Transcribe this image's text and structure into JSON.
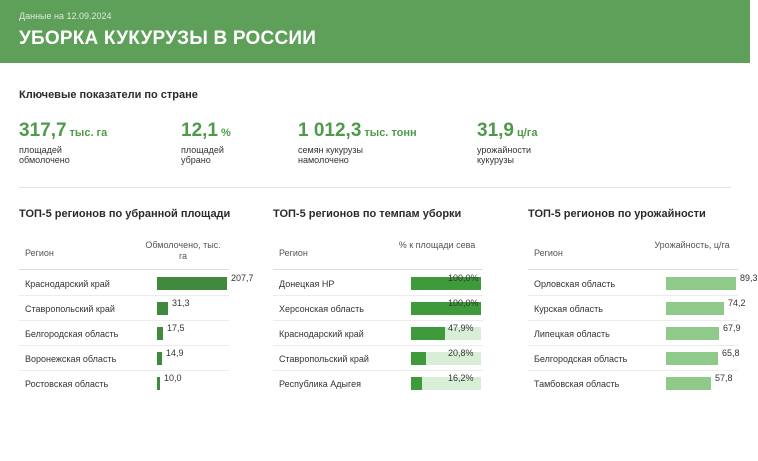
{
  "header": {
    "date": "Данные на 12.09.2024",
    "title": "УБОРКА КУКУРУЗЫ В РОССИИ",
    "background": "#5ea05a"
  },
  "kpi_section": {
    "title": "Ключевые показатели по стране",
    "items": [
      {
        "value": "317,7",
        "unit": "тыс. га",
        "desc_line1": "площадей",
        "desc_line2": "обмолочено"
      },
      {
        "value": "12,1",
        "unit": "%",
        "desc_line1": "площадей",
        "desc_line2": "убрано"
      },
      {
        "value": "1 012,3",
        "unit": "тыс. тонн",
        "desc_line1": "семян кукурузы",
        "desc_line2": "намолочено"
      },
      {
        "value": "31,9",
        "unit": "ц/га",
        "desc_line1": "урожайности",
        "desc_line2": "кукурузы"
      }
    ]
  },
  "tables": [
    {
      "title": "ТОП-5 регионов по убранной площади",
      "col_region": "Регион",
      "col_value": "Обмолочено, тыс. га",
      "bar_color": "#3f8a3c",
      "bar_track": "",
      "max": 207.7,
      "rows": [
        {
          "region": "Краснодарский край",
          "value": 207.7,
          "label": "207,7"
        },
        {
          "region": "Ставропольский край",
          "value": 31.3,
          "label": "31,3"
        },
        {
          "region": "Белгородская область",
          "value": 17.5,
          "label": "17,5"
        },
        {
          "region": "Воронежская область",
          "value": 14.9,
          "label": "14,9"
        },
        {
          "region": "Ростовская область",
          "value": 10.0,
          "label": "10,0"
        }
      ]
    },
    {
      "title": "ТОП-5 регионов по темпам уборки",
      "col_region": "Регион",
      "col_value": "% к площади сева",
      "bar_color": "#3f9a3c",
      "bar_track": "#d9eed7",
      "max": 100,
      "rows": [
        {
          "region": "Донецкая НР",
          "value": 100.0,
          "label": "100,0%"
        },
        {
          "region": "Херсонская область",
          "value": 100.0,
          "label": "100,0%"
        },
        {
          "region": "Краснодарский край",
          "value": 47.9,
          "label": "47,9%"
        },
        {
          "region": "Ставропольский край",
          "value": 20.8,
          "label": "20,8%"
        },
        {
          "region": "Республика Адыгея",
          "value": 16.2,
          "label": "16,2%"
        }
      ]
    },
    {
      "title": "ТОП-5 регионов по урожайности",
      "col_region": "Регион",
      "col_value": "Урожайность, ц/га",
      "bar_color": "#8fca8a",
      "bar_track": "",
      "max": 89.3,
      "rows": [
        {
          "region": "Орловская область",
          "value": 89.3,
          "label": "89,3"
        },
        {
          "region": "Курская область",
          "value": 74.2,
          "label": "74,2"
        },
        {
          "region": "Липецкая область",
          "value": 67.9,
          "label": "67,9"
        },
        {
          "region": "Белгородская область",
          "value": 65.8,
          "label": "65,8"
        },
        {
          "region": "Тамбовская область",
          "value": 57.8,
          "label": "57,8"
        }
      ]
    }
  ]
}
